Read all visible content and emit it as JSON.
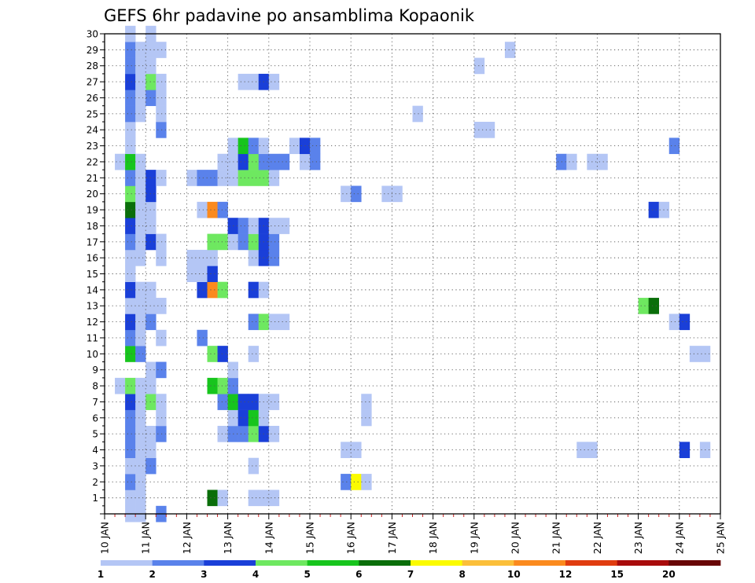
{
  "chart_data": {
    "type": "heatmap",
    "title": "GEFS 6hr padavine po ansamblima Kopaonik",
    "xlabel": "",
    "ylabel": "",
    "x_tick_labels": [
      "10 JAN",
      "11 JAN",
      "12 JAN",
      "13 JAN",
      "14 JAN",
      "15 JAN",
      "16 JAN",
      "17 JAN",
      "18 JAN",
      "19 JAN",
      "20 JAN",
      "21 JAN",
      "22 JAN",
      "23 JAN",
      "24 JAN",
      "25 JAN"
    ],
    "x_range": [
      0,
      60
    ],
    "y_range": [
      0,
      30
    ],
    "y_ticks": [
      1,
      2,
      3,
      4,
      5,
      6,
      7,
      8,
      9,
      10,
      11,
      12,
      13,
      14,
      15,
      16,
      17,
      18,
      19,
      20,
      21,
      22,
      23,
      24,
      25,
      26,
      27,
      28,
      29,
      30
    ],
    "grid": true,
    "color_levels": [
      "1",
      "2",
      "3",
      "4",
      "5",
      "6",
      "7",
      "8",
      "10",
      "12",
      "15",
      "20"
    ],
    "colors": [
      "#b4c6f5",
      "#5a82eb",
      "#1a3fd8",
      "#6ee860",
      "#17c51d",
      "#0a6e0a",
      "#fbfb00",
      "#fbbf3a",
      "#fb8a1e",
      "#e03c0f",
      "#a80b0b",
      "#680606"
    ],
    "cell_legend": "cells = [six-hour step index (0 = 10 JAN 00Z), ensemble member, colour class index]",
    "cells": [
      [
        2,
        0,
        0
      ],
      [
        3,
        0,
        0
      ],
      [
        5,
        0,
        1
      ],
      [
        2,
        1,
        0
      ],
      [
        3,
        1,
        0
      ],
      [
        10,
        1,
        5
      ],
      [
        11,
        1,
        0
      ],
      [
        14,
        1,
        0
      ],
      [
        15,
        1,
        0
      ],
      [
        16,
        1,
        0
      ],
      [
        2,
        2,
        1
      ],
      [
        3,
        2,
        0
      ],
      [
        23,
        2,
        1
      ],
      [
        24,
        2,
        6
      ],
      [
        25,
        2,
        0
      ],
      [
        2,
        3,
        0
      ],
      [
        3,
        3,
        0
      ],
      [
        4,
        3,
        1
      ],
      [
        14,
        3,
        0
      ],
      [
        2,
        4,
        1
      ],
      [
        3,
        4,
        0
      ],
      [
        4,
        4,
        0
      ],
      [
        23,
        4,
        0
      ],
      [
        24,
        4,
        0
      ],
      [
        46,
        4,
        0
      ],
      [
        47,
        4,
        0
      ],
      [
        56,
        4,
        2
      ],
      [
        58,
        4,
        0
      ],
      [
        2,
        5,
        1
      ],
      [
        3,
        5,
        0
      ],
      [
        4,
        5,
        0
      ],
      [
        5,
        5,
        1
      ],
      [
        11,
        5,
        0
      ],
      [
        12,
        5,
        1
      ],
      [
        13,
        5,
        1
      ],
      [
        14,
        5,
        3
      ],
      [
        15,
        5,
        2
      ],
      [
        16,
        5,
        0
      ],
      [
        2,
        6,
        1
      ],
      [
        3,
        6,
        0
      ],
      [
        5,
        6,
        0
      ],
      [
        12,
        6,
        0
      ],
      [
        13,
        6,
        2
      ],
      [
        14,
        6,
        4
      ],
      [
        15,
        6,
        0
      ],
      [
        25,
        6,
        0
      ],
      [
        2,
        7,
        2
      ],
      [
        3,
        7,
        0
      ],
      [
        4,
        7,
        3
      ],
      [
        5,
        7,
        0
      ],
      [
        11,
        7,
        1
      ],
      [
        12,
        7,
        4
      ],
      [
        13,
        7,
        2
      ],
      [
        14,
        7,
        2
      ],
      [
        15,
        7,
        0
      ],
      [
        16,
        7,
        0
      ],
      [
        25,
        7,
        0
      ],
      [
        1,
        8,
        0
      ],
      [
        2,
        8,
        3
      ],
      [
        3,
        8,
        0
      ],
      [
        4,
        8,
        0
      ],
      [
        10,
        8,
        4
      ],
      [
        11,
        8,
        3
      ],
      [
        12,
        8,
        1
      ],
      [
        4,
        9,
        0
      ],
      [
        5,
        9,
        1
      ],
      [
        12,
        9,
        0
      ],
      [
        2,
        10,
        4
      ],
      [
        3,
        10,
        1
      ],
      [
        10,
        10,
        3
      ],
      [
        11,
        10,
        2
      ],
      [
        14,
        10,
        0
      ],
      [
        57,
        10,
        0
      ],
      [
        58,
        10,
        0
      ],
      [
        2,
        11,
        1
      ],
      [
        3,
        11,
        0
      ],
      [
        5,
        11,
        0
      ],
      [
        9,
        11,
        1
      ],
      [
        2,
        12,
        2
      ],
      [
        3,
        12,
        0
      ],
      [
        4,
        12,
        1
      ],
      [
        14,
        12,
        1
      ],
      [
        15,
        12,
        3
      ],
      [
        16,
        12,
        0
      ],
      [
        17,
        12,
        0
      ],
      [
        55,
        12,
        0
      ],
      [
        56,
        12,
        2
      ],
      [
        2,
        13,
        0
      ],
      [
        3,
        13,
        0
      ],
      [
        4,
        13,
        0
      ],
      [
        5,
        13,
        0
      ],
      [
        52,
        13,
        3
      ],
      [
        53,
        13,
        5
      ],
      [
        2,
        14,
        2
      ],
      [
        3,
        14,
        0
      ],
      [
        4,
        14,
        0
      ],
      [
        9,
        14,
        2
      ],
      [
        10,
        14,
        8
      ],
      [
        11,
        14,
        3
      ],
      [
        14,
        14,
        2
      ],
      [
        15,
        14,
        0
      ],
      [
        2,
        15,
        0
      ],
      [
        8,
        15,
        0
      ],
      [
        9,
        15,
        0
      ],
      [
        10,
        15,
        2
      ],
      [
        2,
        16,
        0
      ],
      [
        3,
        16,
        0
      ],
      [
        5,
        16,
        0
      ],
      [
        8,
        16,
        0
      ],
      [
        9,
        16,
        0
      ],
      [
        10,
        16,
        0
      ],
      [
        14,
        16,
        0
      ],
      [
        15,
        16,
        2
      ],
      [
        16,
        16,
        1
      ],
      [
        2,
        17,
        1
      ],
      [
        3,
        17,
        0
      ],
      [
        4,
        17,
        2
      ],
      [
        5,
        17,
        0
      ],
      [
        10,
        17,
        3
      ],
      [
        11,
        17,
        3
      ],
      [
        12,
        17,
        0
      ],
      [
        13,
        17,
        1
      ],
      [
        14,
        17,
        3
      ],
      [
        15,
        17,
        2
      ],
      [
        16,
        17,
        1
      ],
      [
        2,
        18,
        2
      ],
      [
        3,
        18,
        0
      ],
      [
        4,
        18,
        0
      ],
      [
        12,
        18,
        2
      ],
      [
        13,
        18,
        1
      ],
      [
        14,
        18,
        0
      ],
      [
        15,
        18,
        2
      ],
      [
        16,
        18,
        0
      ],
      [
        17,
        18,
        0
      ],
      [
        2,
        19,
        5
      ],
      [
        3,
        19,
        0
      ],
      [
        4,
        19,
        0
      ],
      [
        9,
        19,
        0
      ],
      [
        10,
        19,
        8
      ],
      [
        11,
        19,
        1
      ],
      [
        53,
        19,
        2
      ],
      [
        54,
        19,
        0
      ],
      [
        2,
        20,
        3
      ],
      [
        3,
        20,
        0
      ],
      [
        4,
        20,
        2
      ],
      [
        23,
        20,
        0
      ],
      [
        24,
        20,
        1
      ],
      [
        27,
        20,
        0
      ],
      [
        28,
        20,
        0
      ],
      [
        2,
        21,
        1
      ],
      [
        3,
        21,
        0
      ],
      [
        4,
        21,
        2
      ],
      [
        5,
        21,
        0
      ],
      [
        8,
        21,
        0
      ],
      [
        9,
        21,
        1
      ],
      [
        10,
        21,
        1
      ],
      [
        11,
        21,
        0
      ],
      [
        12,
        21,
        0
      ],
      [
        13,
        21,
        3
      ],
      [
        14,
        21,
        3
      ],
      [
        15,
        21,
        3
      ],
      [
        16,
        21,
        0
      ],
      [
        1,
        22,
        0
      ],
      [
        2,
        22,
        4
      ],
      [
        3,
        22,
        0
      ],
      [
        11,
        22,
        0
      ],
      [
        12,
        22,
        0
      ],
      [
        13,
        22,
        2
      ],
      [
        14,
        22,
        3
      ],
      [
        15,
        22,
        1
      ],
      [
        16,
        22,
        1
      ],
      [
        17,
        22,
        1
      ],
      [
        19,
        22,
        0
      ],
      [
        20,
        22,
        1
      ],
      [
        44,
        22,
        1
      ],
      [
        45,
        22,
        0
      ],
      [
        47,
        22,
        0
      ],
      [
        48,
        22,
        0
      ],
      [
        2,
        23,
        0
      ],
      [
        12,
        23,
        0
      ],
      [
        13,
        23,
        4
      ],
      [
        14,
        23,
        1
      ],
      [
        15,
        23,
        0
      ],
      [
        18,
        23,
        0
      ],
      [
        19,
        23,
        2
      ],
      [
        20,
        23,
        1
      ],
      [
        55,
        23,
        1
      ],
      [
        2,
        24,
        0
      ],
      [
        5,
        24,
        1
      ],
      [
        36,
        24,
        0
      ],
      [
        37,
        24,
        0
      ],
      [
        2,
        25,
        1
      ],
      [
        3,
        25,
        0
      ],
      [
        5,
        25,
        0
      ],
      [
        30,
        25,
        0
      ],
      [
        2,
        26,
        1
      ],
      [
        3,
        26,
        0
      ],
      [
        4,
        26,
        1
      ],
      [
        5,
        26,
        0
      ],
      [
        2,
        27,
        2
      ],
      [
        3,
        27,
        0
      ],
      [
        4,
        27,
        3
      ],
      [
        5,
        27,
        0
      ],
      [
        13,
        27,
        0
      ],
      [
        14,
        27,
        0
      ],
      [
        15,
        27,
        2
      ],
      [
        16,
        27,
        0
      ],
      [
        2,
        28,
        1
      ],
      [
        3,
        28,
        0
      ],
      [
        4,
        28,
        0
      ],
      [
        36,
        28,
        0
      ],
      [
        2,
        29,
        1
      ],
      [
        3,
        29,
        0
      ],
      [
        4,
        29,
        0
      ],
      [
        5,
        29,
        0
      ],
      [
        39,
        29,
        0
      ],
      [
        2,
        30,
        0
      ],
      [
        4,
        30,
        0
      ]
    ]
  }
}
